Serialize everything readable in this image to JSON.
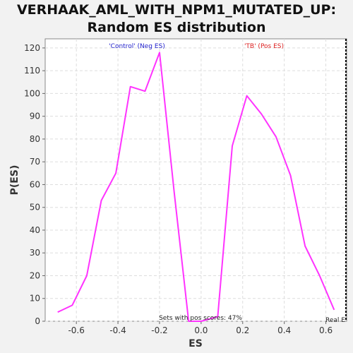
{
  "chart_data": {
    "type": "line",
    "title_line1": "VERHAAK_AML_WITH_NPM1_MUTATED_UP:",
    "title_line2": "Random ES distribution",
    "xlabel": "ES",
    "ylabel": "P(ES)",
    "xlim": [
      -0.75,
      0.7
    ],
    "ylim": [
      0,
      124
    ],
    "x_ticks": [
      -0.6,
      -0.4,
      -0.2,
      0.0,
      0.2,
      0.4,
      0.6
    ],
    "x_tick_labels": [
      "-0.6",
      "-0.4",
      "-0.2",
      "0.0",
      "0.2",
      "0.4",
      "0.6"
    ],
    "y_ticks": [
      0,
      10,
      20,
      30,
      40,
      50,
      60,
      70,
      80,
      90,
      100,
      110,
      120
    ],
    "y_tick_labels": [
      "0",
      "10",
      "20",
      "30",
      "40",
      "50",
      "60",
      "70",
      "80",
      "90",
      "100",
      "110",
      "120"
    ],
    "grid": true,
    "series": [
      {
        "color": "#ff33ff",
        "x": [
          -0.69,
          -0.62,
          -0.55,
          -0.48,
          -0.41,
          -0.34,
          -0.27,
          -0.2,
          -0.13,
          -0.06,
          0.0,
          0.08,
          0.15,
          0.22,
          0.29,
          0.36,
          0.43,
          0.5,
          0.57,
          0.64
        ],
        "y": [
          4,
          7,
          20,
          53,
          65,
          103,
          101,
          118,
          57,
          0,
          0,
          2,
          77,
          99,
          91,
          81,
          64,
          33,
          20,
          5
        ]
      }
    ],
    "annotations": {
      "neg_label": "'Control' (Neg ES)",
      "neg_color": "#2222cc",
      "pos_label": "'TB' (Pos ES)",
      "pos_color": "#dd2222",
      "sets_text": "Sets with pos scores: 47%",
      "real_text": "Real E"
    }
  }
}
